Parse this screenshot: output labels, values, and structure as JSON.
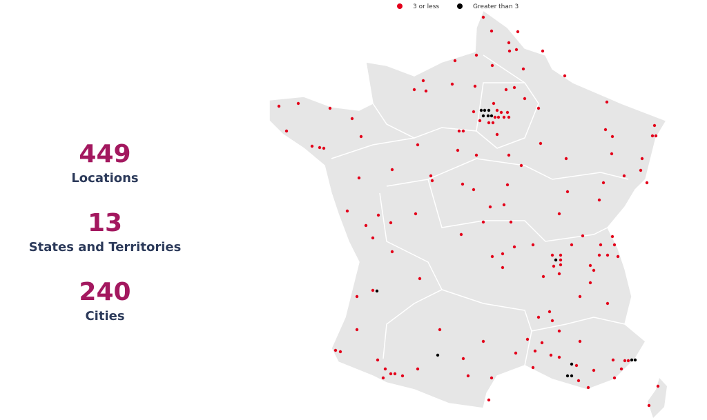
{
  "stats": [
    {
      "value": 449,
      "label": "Locations"
    },
    {
      "value": 13,
      "label": "States and Territories"
    },
    {
      "value": 240,
      "label": "Cities"
    }
  ],
  "legend": [
    {
      "label": "3 or less",
      "color": "#e3001b"
    },
    {
      "label": "Greater than 3",
      "color": "#000000"
    }
  ]
}
